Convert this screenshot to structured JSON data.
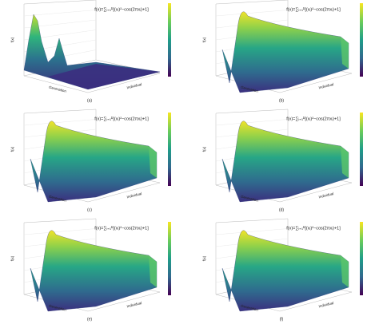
{
  "panels": [
    {
      "label": "(a)",
      "formula": "f(x)=∑ᵢ₌₁ᴰ[(xᵢ)²−cos(2πxᵢ)+1]",
      "x_label": "Generation",
      "y_label": "Individual",
      "z_label": "f(x)"
    },
    {
      "label": "(b)",
      "formula": "f(x)=∑ᵢ₌₁ᴰ[(xᵢ)²−cos(2πxᵢ)+1]",
      "x_label": "Generation",
      "y_label": "Individual",
      "z_label": "f(x)"
    },
    {
      "label": "(c)",
      "formula": "f(x)=∑ᵢ₌₁ᴰ[(xᵢ)²−cos(2πxᵢ)+1]",
      "x_label": "Generation",
      "y_label": "Individual",
      "z_label": "f(x)"
    },
    {
      "label": "(d)",
      "formula": "f(x)=∑ᵢ₌₁ᴰ[(xᵢ)²−cos(2πxᵢ)+1]",
      "x_label": "Generation",
      "y_label": "Individual",
      "z_label": "f(x)"
    },
    {
      "label": "(e)",
      "formula": "f(x)=∑ᵢ₌₁ᴰ[(xᵢ)²−cos(2πxᵢ)+1]",
      "x_label": "Generation",
      "y_label": "Individual",
      "z_label": "f(x)"
    },
    {
      "label": "(f)",
      "formula": "f(x)=∑ᵢ₌₁ᴰ[(xᵢ)²−cos(2πxᵢ)+1]",
      "x_label": "Generation",
      "y_label": "Individual",
      "z_label": "f(x)"
    }
  ]
}
